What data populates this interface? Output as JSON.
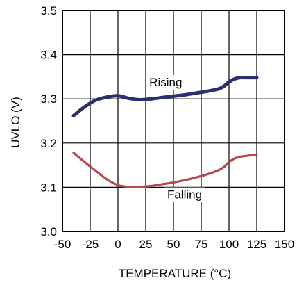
{
  "chart_data": {
    "type": "line",
    "xlabel": "TEMPERATURE (°C)",
    "ylabel": "UVLO (V)",
    "xlim": [
      -50,
      150
    ],
    "ylim": [
      3.0,
      3.5
    ],
    "x_ticks": [
      "-50",
      "-25",
      "0",
      "25",
      "50",
      "75",
      "100",
      "125",
      "150"
    ],
    "y_ticks": [
      "3.0",
      "3.1",
      "3.2",
      "3.3",
      "3.4",
      "3.5"
    ],
    "grid": true,
    "series": [
      {
        "name": "Rising",
        "color": "#2b2f6e",
        "x": [
          -40,
          -30,
          -20,
          -10,
          0,
          10,
          20,
          30,
          40,
          50,
          60,
          70,
          80,
          90,
          95,
          100,
          105,
          110,
          115,
          125
        ],
        "y": [
          3.262,
          3.282,
          3.297,
          3.304,
          3.307,
          3.301,
          3.298,
          3.3,
          3.303,
          3.306,
          3.309,
          3.313,
          3.317,
          3.322,
          3.328,
          3.338,
          3.345,
          3.348,
          3.348,
          3.348
        ]
      },
      {
        "name": "Falling",
        "color": "#b5474f",
        "x": [
          -40,
          -30,
          -20,
          -10,
          0,
          10,
          20,
          30,
          40,
          50,
          60,
          70,
          80,
          90,
          95,
          100,
          105,
          110,
          125
        ],
        "y": [
          3.178,
          3.157,
          3.137,
          3.118,
          3.105,
          3.101,
          3.101,
          3.103,
          3.107,
          3.111,
          3.116,
          3.122,
          3.129,
          3.138,
          3.145,
          3.157,
          3.165,
          3.169,
          3.174
        ]
      }
    ],
    "annotations": [
      {
        "text": "Rising",
        "series": "Rising",
        "x": 43,
        "y": 3.33
      },
      {
        "text": "Falling",
        "series": "Falling",
        "x": 60,
        "y": 3.076
      }
    ]
  }
}
